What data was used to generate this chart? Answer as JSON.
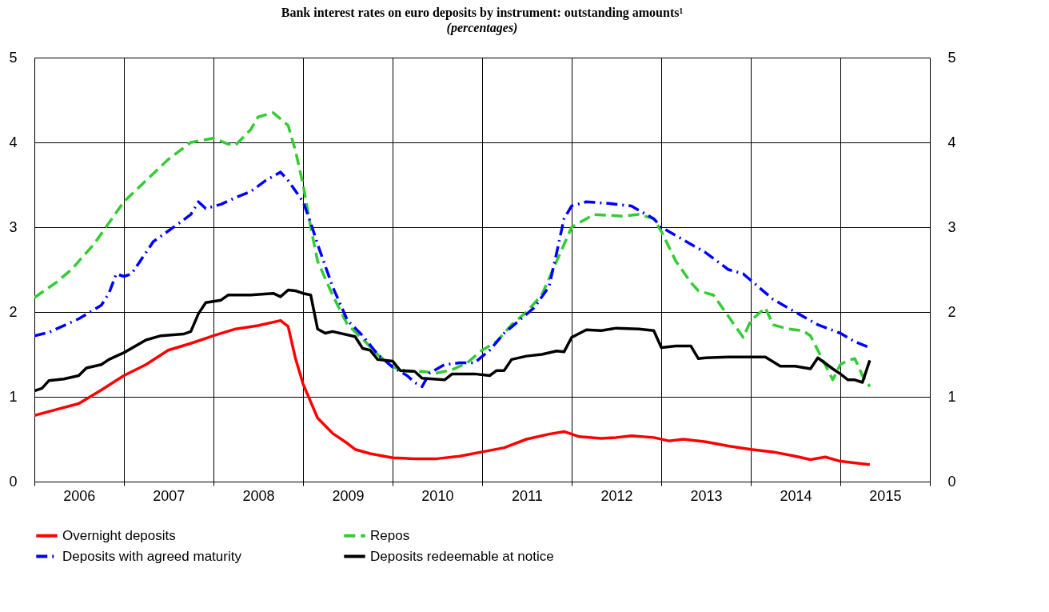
{
  "chart_data": {
    "type": "line",
    "title": "Bank interest rates on euro deposits by instrument: outstanding amounts¹",
    "subtitle": "(percentages)",
    "xlim": [
      "2006-01-01",
      "2016-01-01"
    ],
    "xticks": [
      {
        "value": "2006-01-01",
        "label": null
      },
      {
        "value": "2006-07-02",
        "label": "2006"
      },
      {
        "value": "2007-01-01",
        "label": null
      },
      {
        "value": "2007-07-02",
        "label": "2007"
      },
      {
        "value": "2008-01-01",
        "label": null
      },
      {
        "value": "2008-07-02",
        "label": "2008"
      },
      {
        "value": "2009-01-01",
        "label": null
      },
      {
        "value": "2009-07-02",
        "label": "2009"
      },
      {
        "value": "2010-01-01",
        "label": null
      },
      {
        "value": "2010-07-02",
        "label": "2010"
      },
      {
        "value": "2011-01-01",
        "label": null
      },
      {
        "value": "2011-07-02",
        "label": "2011"
      },
      {
        "value": "2012-01-01",
        "label": null
      },
      {
        "value": "2012-07-02",
        "label": "2012"
      },
      {
        "value": "2013-01-01",
        "label": null
      },
      {
        "value": "2013-07-02",
        "label": "2013"
      },
      {
        "value": "2014-01-01",
        "label": null
      },
      {
        "value": "2014-07-02",
        "label": "2014"
      },
      {
        "value": "2015-01-01",
        "label": null
      },
      {
        "value": "2015-07-02",
        "label": "2015"
      },
      {
        "value": "2016-01-01",
        "label": null
      }
    ],
    "ylim": [
      0,
      5
    ],
    "yticks": [
      0,
      1,
      2,
      3,
      4,
      5
    ],
    "y2lim": [
      0,
      5
    ],
    "y2ticks": [
      0,
      1,
      2,
      3,
      4,
      5
    ],
    "grid": true,
    "legend": "bottom",
    "series": [
      {
        "name": "Overnight deposits",
        "color": "#ff0000",
        "line_style": "solid",
        "x": [
          "2006-01",
          "2006-04",
          "2006-07",
          "2006-10",
          "2007-01",
          "2007-04",
          "2007-07",
          "2007-10",
          "2008-01",
          "2008-04",
          "2008-07",
          "2008-10",
          "2008-11",
          "2008-12",
          "2009-01",
          "2009-03",
          "2009-05",
          "2009-07",
          "2009-08",
          "2009-10",
          "2010-01",
          "2010-04",
          "2010-07",
          "2010-10",
          "2011-01",
          "2011-04",
          "2011-07",
          "2011-10",
          "2011-12",
          "2012-02",
          "2012-05",
          "2012-07",
          "2012-09",
          "2012-12",
          "2013-02",
          "2013-04",
          "2013-07",
          "2013-10",
          "2014-01",
          "2014-04",
          "2014-07",
          "2014-09",
          "2014-11",
          "2015-01",
          "2015-04",
          "2015-05"
        ],
        "values": [
          0.78,
          0.85,
          0.92,
          1.08,
          1.25,
          1.38,
          1.55,
          1.63,
          1.72,
          1.8,
          1.84,
          1.9,
          1.83,
          1.45,
          1.15,
          0.75,
          0.57,
          0.45,
          0.38,
          0.33,
          0.28,
          0.27,
          0.27,
          0.3,
          0.35,
          0.4,
          0.5,
          0.56,
          0.59,
          0.53,
          0.51,
          0.52,
          0.54,
          0.52,
          0.48,
          0.5,
          0.47,
          0.42,
          0.38,
          0.35,
          0.3,
          0.26,
          0.29,
          0.24,
          0.21,
          0.2
        ]
      },
      {
        "name": "Repos",
        "color": "#33cc33",
        "line_style": "dashed",
        "x": [
          "2006-01",
          "2006-04",
          "2006-06",
          "2006-09",
          "2006-11",
          "2007-01",
          "2007-04",
          "2007-07",
          "2007-10",
          "2008-01",
          "2008-03",
          "2008-04",
          "2008-06",
          "2008-07",
          "2008-09",
          "2008-11",
          "2008-12",
          "2009-01",
          "2009-02",
          "2009-03",
          "2009-05",
          "2009-07",
          "2009-09",
          "2009-11",
          "2010-01",
          "2010-03",
          "2010-05",
          "2010-07",
          "2010-09",
          "2010-11",
          "2011-01",
          "2011-03",
          "2011-05",
          "2011-07",
          "2011-09",
          "2011-11",
          "2012-01",
          "2012-03",
          "2012-04",
          "2012-08",
          "2012-10",
          "2012-12",
          "2013-01",
          "2013-03",
          "2013-05",
          "2013-06",
          "2013-08",
          "2013-10",
          "2013-12",
          "2014-01",
          "2014-03",
          "2014-04",
          "2014-06",
          "2014-08",
          "2014-09",
          "2014-10",
          "2014-12",
          "2015-01",
          "2015-02",
          "2015-03",
          "2015-04",
          "2015-05"
        ],
        "values": [
          2.17,
          2.35,
          2.5,
          2.8,
          3.05,
          3.3,
          3.55,
          3.8,
          4.0,
          4.05,
          3.98,
          3.97,
          4.15,
          4.3,
          4.35,
          4.2,
          3.9,
          3.5,
          3.0,
          2.6,
          2.2,
          1.85,
          1.68,
          1.5,
          1.35,
          1.3,
          1.3,
          1.28,
          1.32,
          1.4,
          1.55,
          1.65,
          1.85,
          2.0,
          2.2,
          2.6,
          3.0,
          3.1,
          3.15,
          3.13,
          3.15,
          3.1,
          2.95,
          2.6,
          2.35,
          2.25,
          2.2,
          1.95,
          1.7,
          1.9,
          2.05,
          1.85,
          1.8,
          1.78,
          1.72,
          1.55,
          1.2,
          1.38,
          1.43,
          1.45,
          1.25,
          1.12
        ]
      },
      {
        "name": "Deposits with agreed maturity",
        "color": "#0000ff",
        "line_style": "dashdot",
        "x": [
          "2006-01",
          "2006-03",
          "2006-04",
          "2006-07",
          "2006-10",
          "2006-11",
          "2006-12",
          "2007-01",
          "2007-02",
          "2007-04",
          "2007-05",
          "2007-08",
          "2007-10",
          "2007-11",
          "2007-12",
          "2008-02",
          "2008-04",
          "2008-06",
          "2008-08",
          "2008-10",
          "2008-11",
          "2009-01",
          "2009-02",
          "2009-03",
          "2009-05",
          "2009-07",
          "2009-09",
          "2009-11",
          "2010-01",
          "2010-03",
          "2010-04",
          "2010-05",
          "2010-06",
          "2010-08",
          "2010-10",
          "2010-12",
          "2011-02",
          "2011-04",
          "2011-06",
          "2011-08",
          "2011-10",
          "2011-11",
          "2011-12",
          "2012-01",
          "2012-03",
          "2012-06",
          "2012-09",
          "2012-12",
          "2013-01",
          "2013-04",
          "2013-07",
          "2013-10",
          "2013-12",
          "2014-04",
          "2014-07",
          "2014-10",
          "2015-01",
          "2015-03",
          "2015-05"
        ],
        "values": [
          1.72,
          1.76,
          1.8,
          1.92,
          2.08,
          2.22,
          2.45,
          2.42,
          2.45,
          2.7,
          2.83,
          3.02,
          3.15,
          3.3,
          3.22,
          3.27,
          3.35,
          3.42,
          3.55,
          3.65,
          3.55,
          3.3,
          3.05,
          2.8,
          2.3,
          1.9,
          1.72,
          1.5,
          1.35,
          1.25,
          1.17,
          1.12,
          1.28,
          1.38,
          1.4,
          1.4,
          1.55,
          1.75,
          1.9,
          2.05,
          2.3,
          2.7,
          3.1,
          3.25,
          3.3,
          3.28,
          3.25,
          3.1,
          3.0,
          2.85,
          2.7,
          2.5,
          2.45,
          2.15,
          2.0,
          1.85,
          1.75,
          1.65,
          1.58
        ]
      },
      {
        "name": "Deposits redeemable at notice",
        "color": "#000000",
        "line_style": "solid",
        "x": [
          "2006-01",
          "2006-02",
          "2006-03",
          "2006-05",
          "2006-07",
          "2006-08",
          "2006-10",
          "2006-11",
          "2006-12",
          "2007-01",
          "2007-04",
          "2007-06",
          "2007-09",
          "2007-10",
          "2007-11",
          "2007-12",
          "2008-02",
          "2008-03",
          "2008-06",
          "2008-09",
          "2008-10",
          "2008-11",
          "2008-12",
          "2009-01",
          "2009-02",
          "2009-03",
          "2009-04",
          "2009-05",
          "2009-08",
          "2009-09",
          "2009-10",
          "2009-11",
          "2010-01",
          "2010-02",
          "2010-04",
          "2010-05",
          "2010-08",
          "2010-09",
          "2010-12",
          "2011-02",
          "2011-03",
          "2011-04",
          "2011-05",
          "2011-07",
          "2011-09",
          "2011-11",
          "2011-12",
          "2012-01",
          "2012-03",
          "2012-05",
          "2012-07",
          "2012-10",
          "2012-12",
          "2013-01",
          "2013-03",
          "2013-05",
          "2013-06",
          "2013-07",
          "2013-10",
          "2014-03",
          "2014-05",
          "2014-07",
          "2014-09",
          "2014-10",
          "2014-12",
          "2015-01",
          "2015-02",
          "2015-03",
          "2015-04",
          "2015-05"
        ],
        "values": [
          1.07,
          1.1,
          1.19,
          1.21,
          1.25,
          1.34,
          1.38,
          1.44,
          1.48,
          1.52,
          1.67,
          1.72,
          1.74,
          1.77,
          1.98,
          2.11,
          2.14,
          2.2,
          2.2,
          2.22,
          2.18,
          2.26,
          2.25,
          2.22,
          2.2,
          1.8,
          1.75,
          1.77,
          1.71,
          1.57,
          1.55,
          1.44,
          1.42,
          1.31,
          1.3,
          1.22,
          1.2,
          1.27,
          1.27,
          1.25,
          1.31,
          1.31,
          1.44,
          1.48,
          1.5,
          1.54,
          1.53,
          1.7,
          1.79,
          1.78,
          1.81,
          1.8,
          1.78,
          1.58,
          1.6,
          1.6,
          1.45,
          1.46,
          1.47,
          1.47,
          1.36,
          1.36,
          1.33,
          1.46,
          1.33,
          1.27,
          1.2,
          1.2,
          1.17,
          1.43
        ]
      }
    ]
  }
}
